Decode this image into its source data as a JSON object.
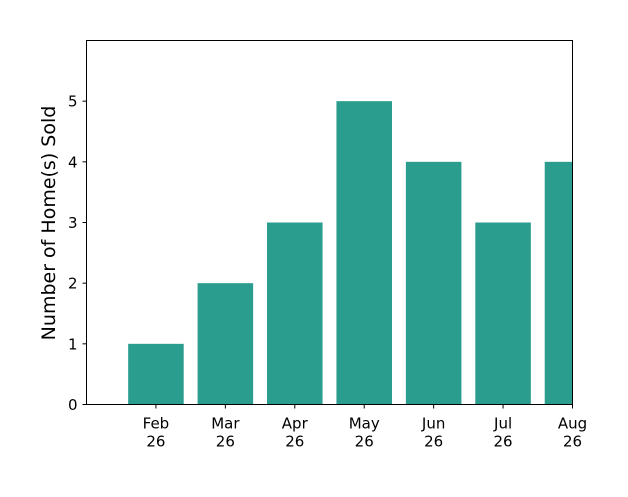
{
  "chart_data": {
    "type": "bar",
    "categories": [
      "Feb\n26",
      "Mar\n26",
      "Apr\n26",
      "May\n26",
      "Jun\n26",
      "Jul\n26",
      "Aug\n26"
    ],
    "values": [
      1,
      2,
      3,
      5,
      4,
      3,
      4
    ],
    "title": "",
    "xlabel": "",
    "ylabel": "Number of Home(s) Sold",
    "ylim": [
      0,
      6
    ],
    "yticks": [
      0,
      1,
      2,
      3,
      4,
      5
    ],
    "grid": false,
    "bar_color": "#2a9d8f",
    "x_range": [
      -1.0,
      6.0
    ]
  }
}
